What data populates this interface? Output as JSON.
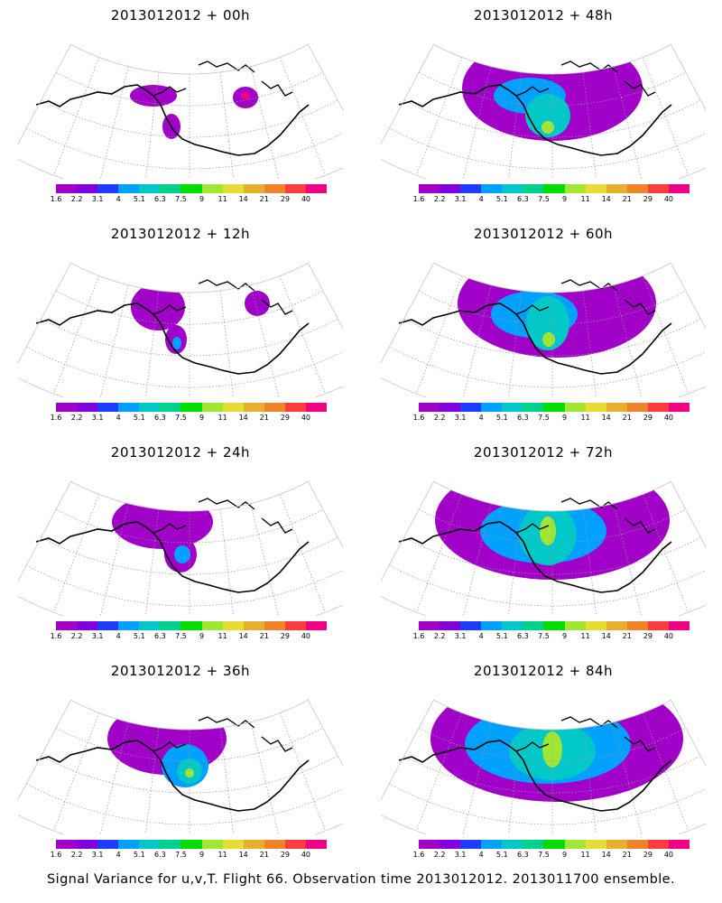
{
  "caption": "Signal Variance for u,v,T. Flight 66. Observation time 2013012012. 2013011700 ensemble.",
  "colorbar": {
    "labels": [
      "1.6",
      "2.2",
      "3.1",
      "4",
      "5.1",
      "6.3",
      "7.5",
      "9",
      "11",
      "14",
      "21",
      "29",
      "40"
    ],
    "colors": [
      "#a000c8",
      "#8200dc",
      "#1e3cff",
      "#00a0ff",
      "#00c8c8",
      "#00d28c",
      "#00dc00",
      "#a0e632",
      "#e6dc32",
      "#e6af2d",
      "#f08228",
      "#fa3c3c",
      "#f00082"
    ]
  },
  "panels": [
    {
      "title": "2013012012 + 00h",
      "blobs": [
        {
          "color": "#a000c8",
          "cx": 170,
          "cy": 100,
          "rx": 26,
          "ry": 12
        },
        {
          "color": "#a000c8",
          "cx": 190,
          "cy": 134,
          "rx": 10,
          "ry": 14
        },
        {
          "color": "#a000c8",
          "cx": 272,
          "cy": 102,
          "rx": 14,
          "ry": 12
        },
        {
          "color": "#f00082",
          "cx": 272,
          "cy": 100,
          "rx": 5,
          "ry": 4
        }
      ]
    },
    {
      "title": "2013012012 + 48h",
      "blobs": [
        {
          "color": "#a000c8",
          "cx": 210,
          "cy": 92,
          "rx": 100,
          "ry": 58
        },
        {
          "color": "#00a0ff",
          "cx": 185,
          "cy": 100,
          "rx": 40,
          "ry": 20
        },
        {
          "color": "#00c8c8",
          "cx": 205,
          "cy": 122,
          "rx": 25,
          "ry": 24
        },
        {
          "color": "#a0e632",
          "cx": 205,
          "cy": 135,
          "rx": 7,
          "ry": 7
        }
      ]
    },
    {
      "title": "2013012012 + 12h",
      "blobs": [
        {
          "color": "#a000c8",
          "cx": 175,
          "cy": 92,
          "rx": 30,
          "ry": 26
        },
        {
          "color": "#a000c8",
          "cx": 195,
          "cy": 128,
          "rx": 12,
          "ry": 16
        },
        {
          "color": "#a000c8",
          "cx": 285,
          "cy": 88,
          "rx": 14,
          "ry": 14
        },
        {
          "color": "#00a0ff",
          "cx": 196,
          "cy": 132,
          "rx": 5,
          "ry": 7
        }
      ]
    },
    {
      "title": "2013012012 + 60h",
      "blobs": [
        {
          "color": "#a000c8",
          "cx": 215,
          "cy": 88,
          "rx": 110,
          "ry": 60
        },
        {
          "color": "#00a0ff",
          "cx": 190,
          "cy": 100,
          "rx": 48,
          "ry": 26
        },
        {
          "color": "#00c8c8",
          "cx": 205,
          "cy": 110,
          "rx": 24,
          "ry": 30
        },
        {
          "color": "#a0e632",
          "cx": 206,
          "cy": 128,
          "rx": 7,
          "ry": 8
        }
      ]
    },
    {
      "title": "2013012012 + 24h",
      "blobs": [
        {
          "color": "#a000c8",
          "cx": 180,
          "cy": 88,
          "rx": 56,
          "ry": 30
        },
        {
          "color": "#a000c8",
          "cx": 200,
          "cy": 124,
          "rx": 18,
          "ry": 20
        },
        {
          "color": "#00a0ff",
          "cx": 202,
          "cy": 124,
          "rx": 9,
          "ry": 10
        }
      ]
    },
    {
      "title": "2013012012 + 72h",
      "blobs": [
        {
          "color": "#a000c8",
          "cx": 210,
          "cy": 86,
          "rx": 130,
          "ry": 66
        },
        {
          "color": "#00a0ff",
          "cx": 200,
          "cy": 98,
          "rx": 70,
          "ry": 36
        },
        {
          "color": "#00c8c8",
          "cx": 205,
          "cy": 102,
          "rx": 32,
          "ry": 34
        },
        {
          "color": "#a0e632",
          "cx": 205,
          "cy": 98,
          "rx": 9,
          "ry": 16
        }
      ]
    },
    {
      "title": "2013012012 + 36h",
      "blobs": [
        {
          "color": "#a000c8",
          "cx": 185,
          "cy": 86,
          "rx": 66,
          "ry": 40
        },
        {
          "color": "#00a0ff",
          "cx": 205,
          "cy": 116,
          "rx": 26,
          "ry": 24
        },
        {
          "color": "#00c8c8",
          "cx": 210,
          "cy": 122,
          "rx": 14,
          "ry": 14
        },
        {
          "color": "#a0e632",
          "cx": 210,
          "cy": 124,
          "rx": 5,
          "ry": 5
        }
      ]
    },
    {
      "title": "2013012012 + 84h",
      "blobs": [
        {
          "color": "#a000c8",
          "cx": 215,
          "cy": 86,
          "rx": 140,
          "ry": 70
        },
        {
          "color": "#00a0ff",
          "cx": 205,
          "cy": 92,
          "rx": 92,
          "ry": 44
        },
        {
          "color": "#00c8c8",
          "cx": 210,
          "cy": 100,
          "rx": 48,
          "ry": 32
        },
        {
          "color": "#a0e632",
          "cx": 210,
          "cy": 98,
          "rx": 11,
          "ry": 20
        }
      ]
    }
  ]
}
